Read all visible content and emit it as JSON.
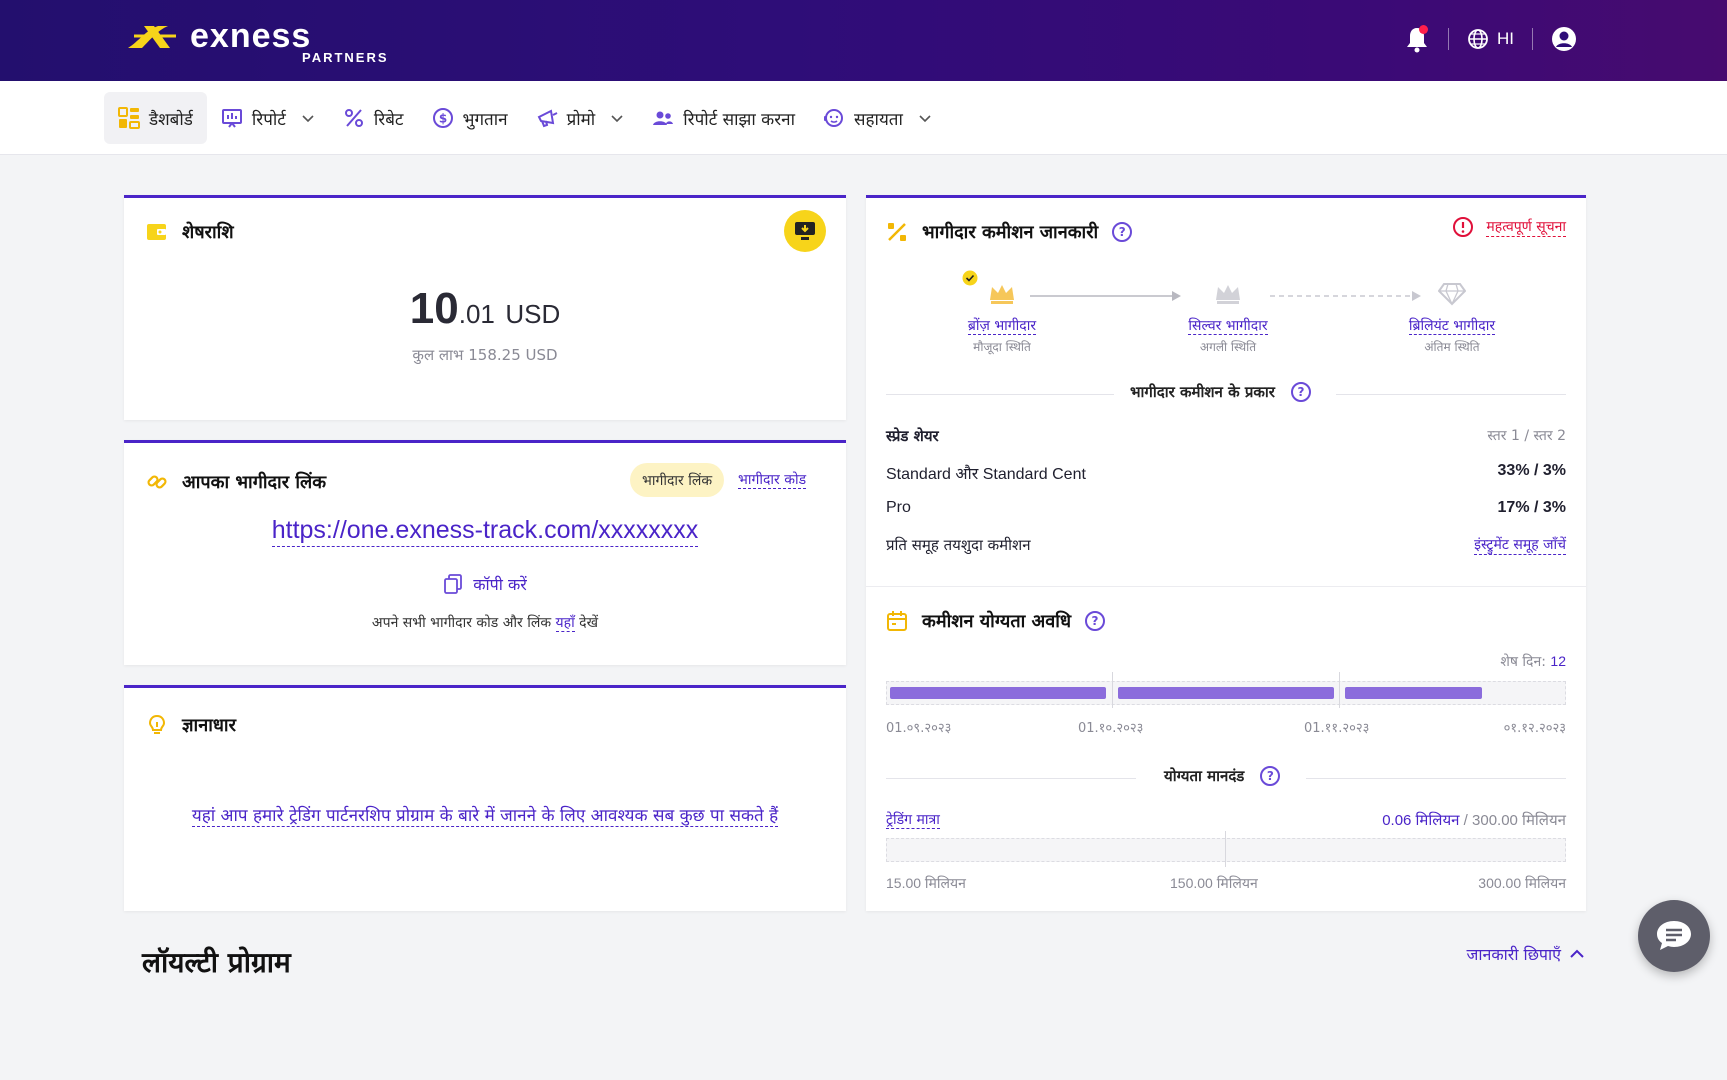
{
  "brand": {
    "name": "exness",
    "sub": "PARTNERS"
  },
  "topbar": {
    "lang": "HI",
    "colors": {
      "accent": "#4a24c8",
      "yellow": "#f7d41a",
      "alert": "#e0103a"
    }
  },
  "nav": [
    {
      "label": "डैशबोर्ड",
      "icon": "dashboard-icon"
    },
    {
      "label": "रिपोर्ट",
      "icon": "report-icon"
    },
    {
      "label": "रिबेट",
      "icon": "percent-icon"
    },
    {
      "label": "भुगतान",
      "icon": "dollar-icon"
    },
    {
      "label": "प्रोमो",
      "icon": "megaphone-icon"
    },
    {
      "label": "रिपोर्ट साझा करना",
      "icon": "people-icon"
    },
    {
      "label": "सहायता",
      "icon": "support-icon"
    }
  ],
  "balance": {
    "title": "शेषराशि",
    "amount_int": "10",
    "amount_dec": ".01",
    "currency": "USD",
    "total": "कुल लाभ 158.25 USD"
  },
  "partner_link": {
    "title": "आपका भागीदार लिंक",
    "tab_link": "भागीदार लिंक",
    "tab_code": "भागीदार कोड",
    "url": "https://one.exness-track.com/xxxxxxxx",
    "copy": "कॉपी करें",
    "note_pre": "अपने सभी भागीदार कोड और लिंक",
    "note_link": "यहाँ",
    "note_post": "देखें"
  },
  "knowledge": {
    "title": "ज्ञानाधार",
    "text": "यहां आप हमारे ट्रेडिंग पार्टनरशिप प्रोग्राम के बारे में जानने के लिए आवश्यक सब कुछ पा सकते हैं"
  },
  "commission": {
    "title": "भागीदार कमीशन जानकारी",
    "notice": "महत्वपूर्ण सूचना",
    "levels": [
      {
        "name": "ब्रोंज़ भागीदार",
        "status": "मौजूदा स्थिति"
      },
      {
        "name": "सिल्वर भागीदार",
        "status": "अगली स्थिति"
      },
      {
        "name": "ब्रिलियंट भागीदार",
        "status": "अंतिम स्थिति"
      }
    ],
    "types_label": "भागीदार कमीशन के प्रकार",
    "rows": [
      {
        "label": "स्प्रेड शेयर",
        "value": "स्तर 1 / स्तर 2"
      },
      {
        "label": "Standard और Standard Cent",
        "value": "33% / 3%"
      },
      {
        "label": "Pro",
        "value": "17% / 3%"
      },
      {
        "label": "प्रति समूह तयशुदा कमीशन",
        "value": "इंस्ट्रुमेंट समूह जाँचें"
      }
    ]
  },
  "eligibility": {
    "title": "कमीशन योग्यता अवधि",
    "days_label": "शेष दिन:",
    "days_value": "12",
    "dates": [
      "01.०९.२०२३",
      "01.१०.२०२३",
      "01.११.२०२३",
      "०१.१२.२०२३"
    ],
    "criteria_label": "योग्यता मानदंड",
    "volume_label": "ट्रेडिंग मात्रा",
    "volume_current": "0.06 मिलियन",
    "volume_total": "/ 300.00 मिलियन",
    "scale": [
      "15.00 मिलियन",
      "150.00 मिलियन",
      "300.00 मिलियन"
    ]
  },
  "loyalty": {
    "title": "लॉयल्टी प्रोग्राम",
    "hide": "जानकारी छिपाएँ"
  }
}
